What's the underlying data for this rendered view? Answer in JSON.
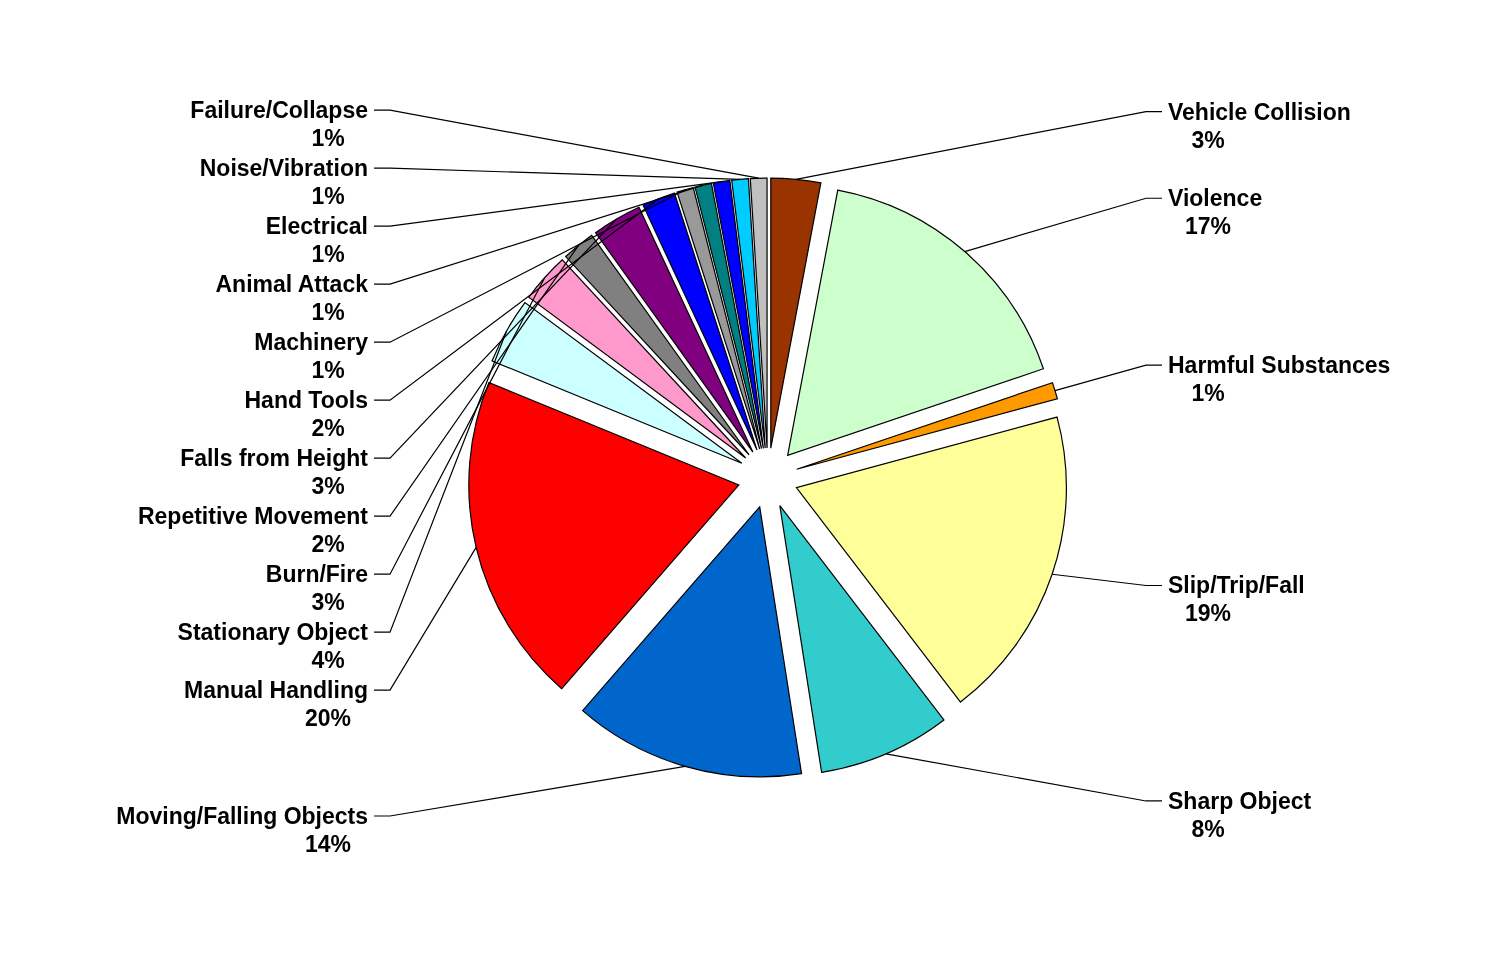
{
  "chart_data": {
    "type": "pie",
    "categories": [
      "Vehicle Collision",
      "Violence",
      "Harmful Substances",
      "Slip/Trip/Fall",
      "Sharp Object",
      "Moving/Falling Objects",
      "Manual Handling",
      "Stationary Object",
      "Burn/Fire",
      "Repetitive Movement",
      "Falls from Height",
      "Hand Tools",
      "Machinery",
      "Animal Attack",
      "Electrical",
      "Noise/Vibration",
      "Failure/Collapse"
    ],
    "values": [
      3,
      17,
      1,
      19,
      8,
      14,
      20,
      4,
      3,
      2,
      3,
      2,
      1,
      1,
      1,
      1,
      1
    ],
    "value_labels": [
      "3%",
      "17%",
      "1%",
      "19%",
      "8%",
      "14%",
      "20%",
      "4%",
      "3%",
      "2%",
      "3%",
      "2%",
      "1%",
      "1%",
      "1%",
      "1%",
      "1%"
    ],
    "colors": [
      "#993300",
      "#ccffcc",
      "#ff9900",
      "#ffff99",
      "#33cccc",
      "#0066cc",
      "#ff0000",
      "#ccffff",
      "#ff99cc",
      "#808080",
      "#800080",
      "#0000ff",
      "#999999",
      "#008080",
      "#0000ff",
      "#00ccff",
      "#c0c0c0"
    ]
  }
}
